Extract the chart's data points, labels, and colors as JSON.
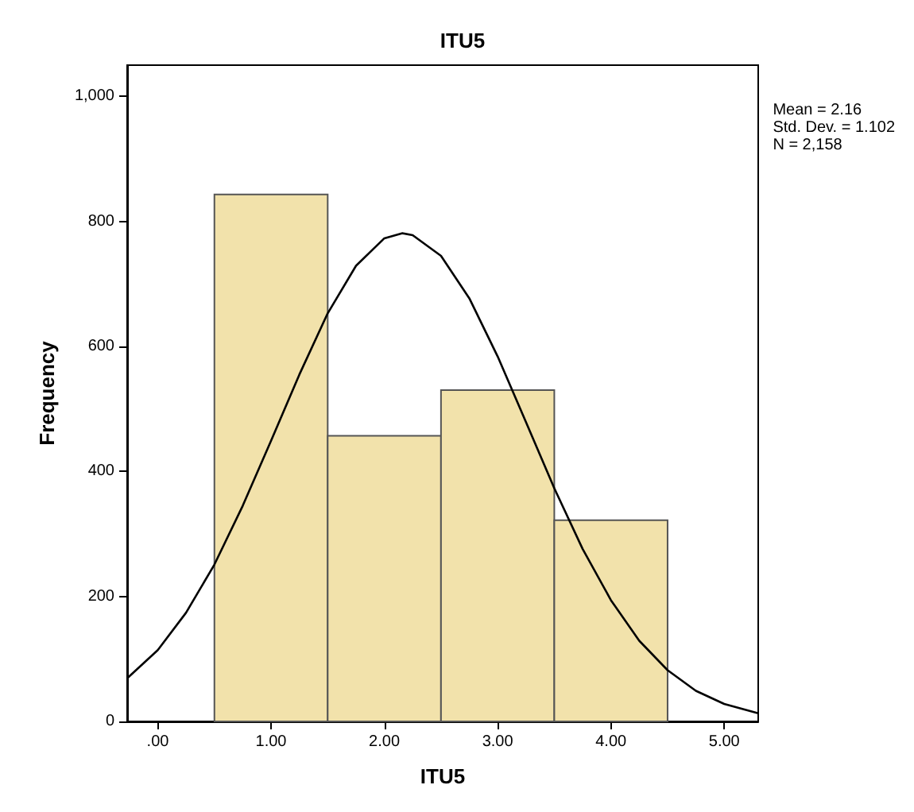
{
  "chart_data": {
    "type": "histogram",
    "title": "ITU5",
    "xlabel": "ITU5",
    "ylabel": "Frequency",
    "bins": [
      0.5,
      1.5,
      2.5,
      3.5,
      4.5
    ],
    "series": [
      {
        "color": "#f2e2ab",
        "values": [
          843,
          457,
          530,
          322
        ]
      },
      {
        "type": "line",
        "color": "#000000",
        "x": [
          -0.27,
          0,
          0.25,
          0.5,
          0.75,
          1,
          1.25,
          1.5,
          1.75,
          2,
          2.16,
          2.25,
          2.5,
          2.75,
          3,
          3.25,
          3.5,
          3.75,
          4,
          4.25,
          4.5,
          4.75,
          5,
          5.3
        ],
        "values": [
          69,
          114,
          174,
          251,
          345,
          449,
          555,
          653,
          729,
          773,
          781,
          778,
          745,
          677,
          584,
          479,
          373,
          276,
          194,
          129,
          82,
          49,
          28,
          13
        ]
      }
    ],
    "xlim": [
      -0.27,
      5.3
    ],
    "xticks": [
      {
        "value": 0,
        "label": ".00"
      },
      {
        "value": 1,
        "label": "1.00"
      },
      {
        "value": 2,
        "label": "2.00"
      },
      {
        "value": 3,
        "label": "3.00"
      },
      {
        "value": 4,
        "label": "4.00"
      },
      {
        "value": 5,
        "label": "5.00"
      }
    ],
    "ylim": [
      0,
      1050
    ],
    "yticks": [
      0,
      200,
      400,
      600,
      800,
      {
        "value": 1000,
        "label": "1,000"
      }
    ],
    "annotations": [
      "Mean = 2.16",
      "Std. Dev. = 1.102",
      "N = 2,158"
    ],
    "grid": false,
    "marker": "none"
  }
}
